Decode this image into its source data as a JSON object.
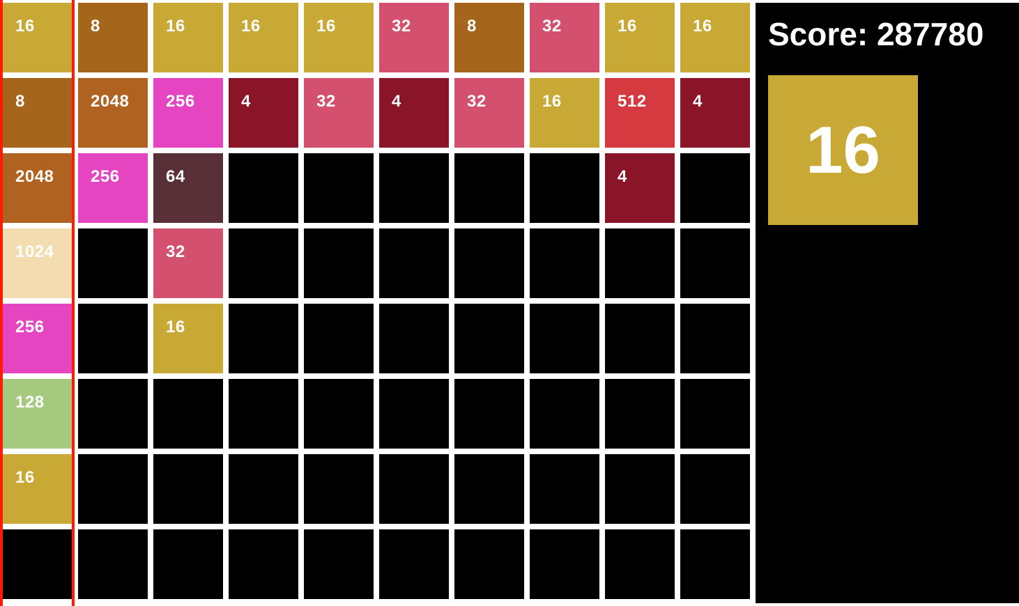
{
  "score_label": "Score: 287780",
  "score": 287780,
  "next_tile": {
    "value": 16,
    "label": "16"
  },
  "selected_column": 0,
  "grid": [
    [
      16,
      8,
      16,
      16,
      16,
      32,
      8,
      32,
      16,
      16
    ],
    [
      8,
      2048,
      256,
      4,
      32,
      4,
      32,
      16,
      512,
      4
    ],
    [
      2048,
      256,
      64,
      0,
      0,
      0,
      0,
      0,
      4,
      0
    ],
    [
      1024,
      0,
      32,
      0,
      0,
      0,
      0,
      0,
      0,
      0
    ],
    [
      256,
      0,
      16,
      0,
      0,
      0,
      0,
      0,
      0,
      0
    ],
    [
      128,
      0,
      0,
      0,
      0,
      0,
      0,
      0,
      0,
      0
    ],
    [
      16,
      0,
      0,
      0,
      0,
      0,
      0,
      0,
      0,
      0
    ],
    [
      0,
      0,
      0,
      0,
      0,
      0,
      0,
      0,
      0,
      0
    ]
  ],
  "colors": {
    "4": "#8a1428",
    "8": "#a5651a",
    "16": "#c9a935",
    "32": "#d4506f",
    "64": "#5a3038",
    "128": "#a5c97e",
    "256": "#e545c0",
    "512": "#d43a40",
    "1024": "#f3ddb0",
    "2048": "#b06320",
    "empty": "#000000",
    "highlight": "#ff1a00"
  }
}
